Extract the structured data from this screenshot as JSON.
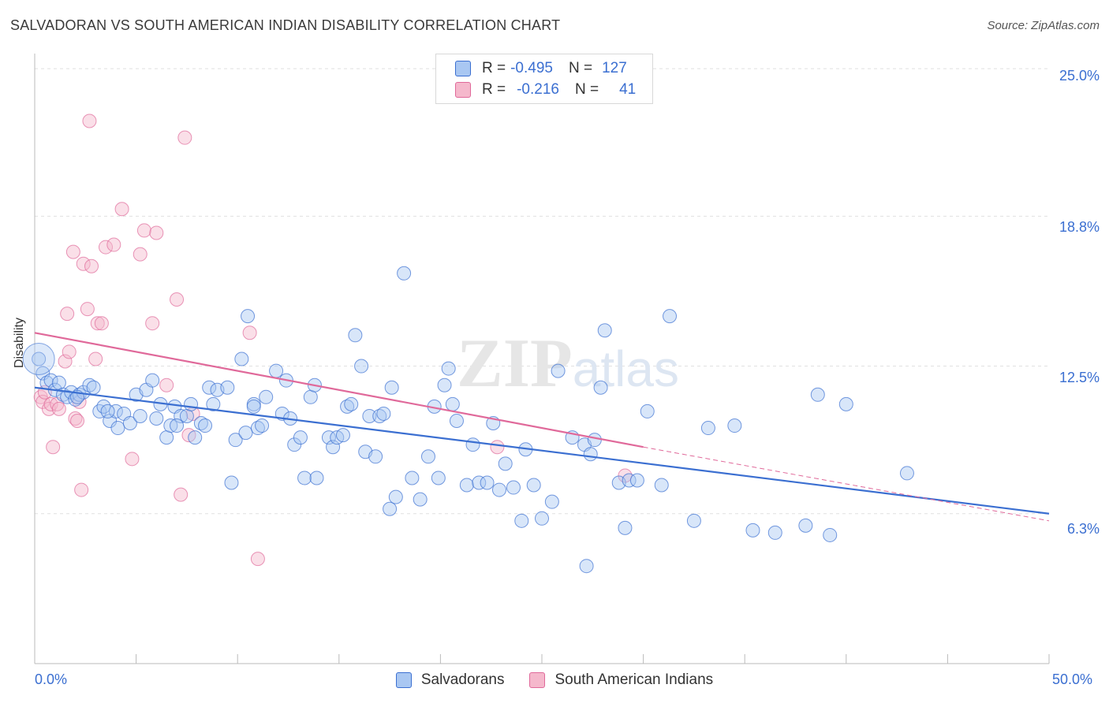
{
  "title": "SALVADORAN VS SOUTH AMERICAN INDIAN DISABILITY CORRELATION CHART",
  "source": "Source: ZipAtlas.com",
  "colors": {
    "blue": "#3b6fd1",
    "blue_fill": "#a9c7f2",
    "pink": "#e0699a",
    "pink_fill": "#f5b8cc",
    "grid": "#e0e0e0"
  },
  "legend": {
    "rows": [
      {
        "r_label": "R =",
        "r_value": "-0.495",
        "n_label": "N =",
        "n_value": "127"
      },
      {
        "r_label": "R =",
        "r_value": "-0.216",
        "n_label": "N =",
        "n_value": "41"
      }
    ]
  },
  "bottom_legend": [
    "Salvadorans",
    "South American Indians"
  ],
  "x_tick_labels": [
    "0.0%",
    "50.0%"
  ],
  "y_tick_labels": [
    "25.0%",
    "18.8%",
    "12.5%",
    "6.3%"
  ],
  "chart_data": {
    "type": "scatter",
    "title": "SALVADORAN VS SOUTH AMERICAN INDIAN DISABILITY CORRELATION CHART",
    "xlabel": "",
    "ylabel": "Disability",
    "xlim": [
      0,
      50
    ],
    "ylim": [
      0,
      25.5
    ],
    "y_ticks": [
      25.0,
      18.8,
      12.5,
      6.3
    ],
    "grid": true,
    "watermark": "ZIPatlas",
    "series": [
      {
        "name": "Salvadorans",
        "color": "#3b6fd1",
        "trend": {
          "x": [
            0,
            50
          ],
          "y": [
            11.6,
            6.3
          ]
        },
        "points": [
          [
            0.2,
            12.8
          ],
          [
            0.4,
            12.2
          ],
          [
            0.6,
            11.8
          ],
          [
            0.8,
            11.9
          ],
          [
            1.0,
            11.5
          ],
          [
            1.2,
            11.8
          ],
          [
            1.4,
            11.3
          ],
          [
            1.6,
            11.2
          ],
          [
            1.8,
            11.4
          ],
          [
            2.0,
            11.1
          ],
          [
            2.2,
            11.3
          ],
          [
            2.4,
            11.4
          ],
          [
            2.7,
            11.7
          ],
          [
            2.9,
            11.6
          ],
          [
            3.2,
            10.6
          ],
          [
            3.4,
            10.8
          ],
          [
            3.7,
            10.2
          ],
          [
            4.0,
            10.6
          ],
          [
            4.1,
            9.9
          ],
          [
            4.4,
            10.5
          ],
          [
            4.7,
            10.1
          ],
          [
            5.0,
            11.3
          ],
          [
            5.2,
            10.4
          ],
          [
            5.5,
            11.5
          ],
          [
            5.8,
            11.9
          ],
          [
            6.0,
            10.3
          ],
          [
            6.2,
            10.9
          ],
          [
            6.5,
            9.5
          ],
          [
            6.7,
            10.0
          ],
          [
            6.9,
            10.8
          ],
          [
            7.2,
            10.4
          ],
          [
            7.5,
            10.4
          ],
          [
            7.7,
            10.9
          ],
          [
            7.9,
            9.5
          ],
          [
            8.2,
            10.1
          ],
          [
            8.4,
            10.0
          ],
          [
            8.6,
            11.6
          ],
          [
            8.8,
            10.9
          ],
          [
            9.0,
            11.5
          ],
          [
            9.5,
            11.6
          ],
          [
            9.7,
            7.6
          ],
          [
            9.9,
            9.4
          ],
          [
            10.2,
            12.8
          ],
          [
            10.4,
            9.7
          ],
          [
            10.5,
            14.6
          ],
          [
            10.8,
            10.9
          ],
          [
            11.0,
            9.9
          ],
          [
            11.2,
            10.0
          ],
          [
            11.4,
            11.2
          ],
          [
            11.9,
            12.3
          ],
          [
            12.2,
            10.5
          ],
          [
            12.4,
            11.9
          ],
          [
            12.6,
            10.3
          ],
          [
            12.8,
            9.2
          ],
          [
            13.1,
            9.5
          ],
          [
            13.3,
            7.8
          ],
          [
            13.6,
            11.2
          ],
          [
            13.8,
            11.7
          ],
          [
            13.9,
            7.8
          ],
          [
            14.5,
            9.5
          ],
          [
            14.7,
            9.1
          ],
          [
            14.9,
            9.5
          ],
          [
            15.2,
            9.6
          ],
          [
            15.4,
            10.8
          ],
          [
            15.6,
            10.9
          ],
          [
            15.8,
            13.8
          ],
          [
            16.1,
            12.5
          ],
          [
            16.3,
            8.9
          ],
          [
            16.5,
            10.4
          ],
          [
            16.8,
            8.7
          ],
          [
            17.0,
            10.4
          ],
          [
            17.2,
            10.5
          ],
          [
            17.5,
            6.5
          ],
          [
            17.6,
            11.6
          ],
          [
            17.8,
            7.0
          ],
          [
            18.2,
            16.4
          ],
          [
            18.6,
            7.8
          ],
          [
            19.0,
            6.9
          ],
          [
            19.4,
            8.7
          ],
          [
            19.7,
            10.8
          ],
          [
            19.9,
            7.8
          ],
          [
            20.2,
            11.7
          ],
          [
            20.4,
            12.4
          ],
          [
            20.6,
            10.9
          ],
          [
            20.8,
            10.2
          ],
          [
            21.3,
            7.5
          ],
          [
            21.6,
            9.2
          ],
          [
            21.9,
            7.6
          ],
          [
            22.3,
            7.6
          ],
          [
            22.6,
            10.1
          ],
          [
            22.9,
            7.3
          ],
          [
            23.2,
            8.4
          ],
          [
            23.6,
            7.4
          ],
          [
            24.0,
            6.0
          ],
          [
            24.2,
            9.0
          ],
          [
            24.6,
            7.5
          ],
          [
            25.0,
            6.1
          ],
          [
            25.5,
            6.8
          ],
          [
            25.8,
            12.3
          ],
          [
            26.5,
            9.5
          ],
          [
            27.1,
            9.2
          ],
          [
            27.4,
            8.8
          ],
          [
            27.6,
            9.4
          ],
          [
            27.9,
            11.6
          ],
          [
            28.1,
            14.0
          ],
          [
            28.8,
            7.6
          ],
          [
            29.1,
            5.7
          ],
          [
            29.3,
            7.7
          ],
          [
            29.7,
            7.7
          ],
          [
            30.2,
            10.6
          ],
          [
            30.9,
            7.5
          ],
          [
            31.3,
            14.6
          ],
          [
            32.5,
            6.0
          ],
          [
            33.2,
            9.9
          ],
          [
            34.5,
            10.0
          ],
          [
            35.4,
            5.6
          ],
          [
            36.5,
            5.5
          ],
          [
            38.0,
            5.8
          ],
          [
            38.6,
            11.3
          ],
          [
            39.2,
            5.4
          ],
          [
            40.0,
            10.9
          ],
          [
            43.0,
            8.0
          ],
          [
            27.2,
            4.1
          ],
          [
            10.8,
            10.8
          ],
          [
            7.0,
            10.0
          ],
          [
            3.6,
            10.6
          ],
          [
            2.1,
            11.2
          ]
        ],
        "large_point": [
          0.2,
          12.8
        ]
      },
      {
        "name": "South American Indians",
        "color": "#e0699a",
        "trend": {
          "x": [
            0,
            30
          ],
          "y": [
            13.9,
            9.1
          ]
        },
        "trend_dashed": {
          "x": [
            30,
            50
          ],
          "y": [
            9.1,
            6.0
          ]
        },
        "points": [
          [
            0.3,
            11.2
          ],
          [
            0.4,
            11.0
          ],
          [
            0.5,
            11.4
          ],
          [
            0.7,
            10.7
          ],
          [
            0.8,
            10.9
          ],
          [
            0.9,
            9.1
          ],
          [
            1.1,
            10.9
          ],
          [
            1.2,
            10.7
          ],
          [
            1.5,
            12.7
          ],
          [
            1.6,
            14.7
          ],
          [
            1.7,
            13.1
          ],
          [
            1.9,
            17.3
          ],
          [
            2.0,
            10.3
          ],
          [
            2.1,
            10.2
          ],
          [
            2.2,
            11.0
          ],
          [
            2.3,
            7.3
          ],
          [
            2.4,
            16.8
          ],
          [
            2.6,
            14.9
          ],
          [
            2.7,
            22.8
          ],
          [
            2.8,
            16.7
          ],
          [
            3.0,
            12.8
          ],
          [
            3.1,
            14.3
          ],
          [
            3.3,
            14.3
          ],
          [
            3.5,
            17.5
          ],
          [
            3.9,
            17.6
          ],
          [
            4.3,
            19.1
          ],
          [
            4.8,
            8.6
          ],
          [
            5.2,
            17.2
          ],
          [
            5.4,
            18.2
          ],
          [
            5.8,
            14.3
          ],
          [
            6.0,
            18.1
          ],
          [
            6.5,
            11.7
          ],
          [
            7.0,
            15.3
          ],
          [
            7.2,
            7.1
          ],
          [
            7.4,
            22.1
          ],
          [
            7.6,
            9.6
          ],
          [
            7.8,
            10.5
          ],
          [
            10.6,
            13.9
          ],
          [
            11.0,
            4.4
          ],
          [
            22.8,
            9.1
          ],
          [
            29.1,
            7.9
          ]
        ]
      }
    ]
  }
}
